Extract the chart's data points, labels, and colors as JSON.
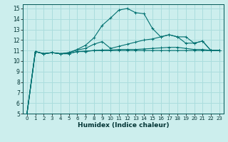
{
  "xlabel": "Humidex (Indice chaleur)",
  "ylabel": "",
  "xlim": [
    -0.5,
    23.5
  ],
  "ylim": [
    5,
    15.4
  ],
  "yticks": [
    5,
    6,
    7,
    8,
    9,
    10,
    11,
    12,
    13,
    14,
    15
  ],
  "xticks": [
    0,
    1,
    2,
    3,
    4,
    5,
    6,
    7,
    8,
    9,
    10,
    11,
    12,
    13,
    14,
    15,
    16,
    17,
    18,
    19,
    20,
    21,
    22,
    23
  ],
  "bg_color": "#cceeed",
  "grid_color": "#aadddd",
  "line_color": "#007070",
  "series": [
    {
      "x": [
        0,
        1,
        2,
        3,
        4,
        5,
        6,
        7,
        8,
        9,
        10,
        11,
        12,
        13,
        14,
        15,
        16,
        17,
        18,
        19,
        20,
        21,
        22,
        23
      ],
      "y": [
        5.0,
        10.9,
        10.7,
        10.8,
        10.7,
        10.7,
        10.9,
        10.9,
        11.0,
        11.0,
        11.0,
        11.0,
        11.0,
        11.0,
        11.0,
        11.0,
        11.0,
        11.0,
        11.0,
        11.0,
        11.0,
        11.0,
        11.0,
        11.0
      ]
    },
    {
      "x": [
        0,
        1,
        2,
        3,
        4,
        5,
        6,
        7,
        8,
        9,
        10,
        11,
        12,
        13,
        14,
        15,
        16,
        17,
        18,
        19,
        20,
        21,
        22,
        23
      ],
      "y": [
        5.0,
        10.9,
        10.7,
        10.8,
        10.7,
        10.8,
        11.1,
        11.5,
        12.2,
        13.4,
        14.1,
        14.85,
        15.0,
        14.6,
        14.5,
        13.1,
        12.3,
        12.5,
        12.3,
        11.7,
        11.7,
        11.9,
        11.0,
        11.0
      ]
    },
    {
      "x": [
        0,
        1,
        2,
        3,
        4,
        5,
        6,
        7,
        8,
        9,
        10,
        11,
        12,
        13,
        14,
        15,
        16,
        17,
        18,
        19,
        20,
        21,
        22,
        23
      ],
      "y": [
        5.0,
        10.9,
        10.7,
        10.8,
        10.7,
        10.8,
        11.05,
        11.2,
        11.6,
        11.85,
        11.2,
        11.4,
        11.6,
        11.8,
        12.0,
        12.1,
        12.3,
        12.5,
        12.3,
        12.3,
        11.7,
        11.9,
        11.0,
        11.0
      ]
    },
    {
      "x": [
        0,
        1,
        2,
        3,
        4,
        5,
        6,
        7,
        8,
        9,
        10,
        11,
        12,
        13,
        14,
        15,
        16,
        17,
        18,
        19,
        20,
        21,
        22,
        23
      ],
      "y": [
        5.0,
        10.9,
        10.7,
        10.8,
        10.7,
        10.7,
        10.9,
        10.95,
        11.0,
        11.05,
        11.05,
        11.1,
        11.1,
        11.1,
        11.15,
        11.2,
        11.25,
        11.3,
        11.3,
        11.2,
        11.1,
        11.1,
        11.0,
        11.0
      ]
    }
  ]
}
